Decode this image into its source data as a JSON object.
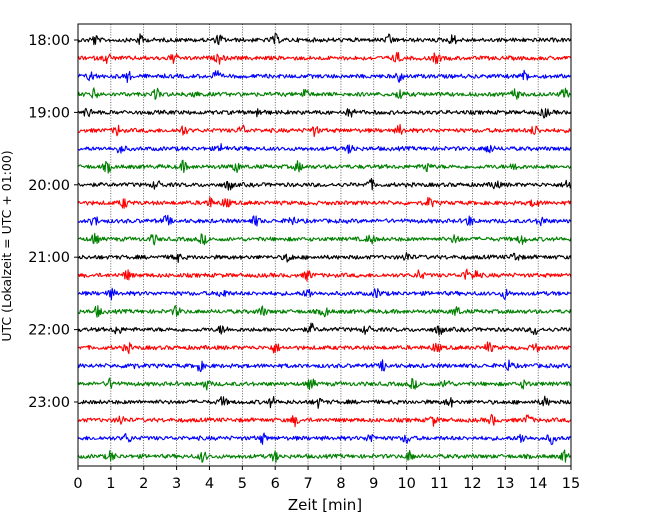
{
  "chart_data": {
    "type": "line",
    "title": "",
    "xlabel": "Zeit  [min]",
    "ylabel": "UTC (Lokalzeit = UTC + 01:00)",
    "xlim": [
      0,
      15
    ],
    "x_ticks": [
      "0",
      "1",
      "2",
      "3",
      "4",
      "5",
      "6",
      "7",
      "8",
      "9",
      "10",
      "11",
      "12",
      "13",
      "14",
      "15"
    ],
    "y_ticks": [
      "18:00",
      "19:00",
      "20:00",
      "21:00",
      "22:00",
      "23:00"
    ],
    "grid": "vertical dotted at each minute",
    "trace_interval_minutes": 15,
    "trace_colors": [
      "#000000",
      "#ff0000",
      "#0000ff",
      "#008000"
    ],
    "traces": [
      {
        "start": "18:00",
        "color": "#000000",
        "events_min": [
          0.5,
          1.9,
          4.3,
          6.0,
          9.5,
          11.4
        ]
      },
      {
        "start": "18:15",
        "color": "#ff0000",
        "events_min": [
          0.9,
          2.9,
          4.3,
          9.7,
          10.9
        ]
      },
      {
        "start": "18:30",
        "color": "#0000ff",
        "events_min": [
          0.4,
          1.5,
          4.2,
          9.8,
          13.6
        ]
      },
      {
        "start": "18:45",
        "color": "#008000",
        "events_min": [
          0.5,
          2.4,
          3.5,
          6.9,
          9.8,
          13.3,
          14.8
        ]
      },
      {
        "start": "19:00",
        "color": "#000000",
        "events_min": [
          0.3,
          5.5,
          8.3,
          14.2
        ]
      },
      {
        "start": "19:15",
        "color": "#ff0000",
        "events_min": [
          1.2,
          3.2,
          5.0,
          7.2,
          9.8,
          13.9
        ]
      },
      {
        "start": "19:30",
        "color": "#0000ff",
        "events_min": [
          1.3,
          4.4,
          8.3,
          12.5
        ]
      },
      {
        "start": "19:45",
        "color": "#008000",
        "events_min": [
          0.9,
          3.2,
          4.8,
          6.7,
          10.6,
          13.3
        ]
      },
      {
        "start": "20:00",
        "color": "#000000",
        "events_min": [
          2.4,
          4.6,
          8.9,
          12.7,
          14.9
        ]
      },
      {
        "start": "20:15",
        "color": "#ff0000",
        "events_min": [
          1.4,
          4.0,
          4.5,
          10.7,
          13.9
        ]
      },
      {
        "start": "20:30",
        "color": "#0000ff",
        "events_min": [
          0.5,
          2.7,
          5.4,
          6.5,
          11.9,
          14.1
        ]
      },
      {
        "start": "20:45",
        "color": "#008000",
        "events_min": [
          0.5,
          2.3,
          3.8,
          8.9,
          11.5,
          13.5
        ]
      },
      {
        "start": "21:00",
        "color": "#000000",
        "events_min": [
          3.0,
          6.4,
          10.0,
          13.3
        ]
      },
      {
        "start": "21:15",
        "color": "#ff0000",
        "events_min": [
          1.5,
          7.0,
          10.4,
          11.8,
          12.1
        ]
      },
      {
        "start": "21:30",
        "color": "#0000ff",
        "events_min": [
          1.0,
          4.4,
          7.0,
          9.1,
          13.0
        ]
      },
      {
        "start": "21:45",
        "color": "#008000",
        "events_min": [
          0.6,
          3.0,
          5.6,
          7.5,
          11.5
        ]
      },
      {
        "start": "22:00",
        "color": "#000000",
        "events_min": [
          1.2,
          4.4,
          7.1,
          8.8,
          11.0,
          13.9
        ]
      },
      {
        "start": "22:15",
        "color": "#ff0000",
        "events_min": [
          1.5,
          6.0,
          10.9,
          12.5,
          13.9
        ]
      },
      {
        "start": "22:30",
        "color": "#0000ff",
        "events_min": [
          1.6,
          3.7,
          9.3,
          13.1
        ]
      },
      {
        "start": "22:45",
        "color": "#008000",
        "events_min": [
          1.0,
          3.9,
          7.1,
          10.2,
          11.2,
          13.6
        ]
      },
      {
        "start": "23:00",
        "color": "#000000",
        "events_min": [
          4.4,
          5.9,
          7.3,
          11.3,
          14.2
        ]
      },
      {
        "start": "23:15",
        "color": "#ff0000",
        "events_min": [
          1.3,
          6.6,
          10.8,
          12.6,
          13.7
        ]
      },
      {
        "start": "23:30",
        "color": "#0000ff",
        "events_min": [
          1.5,
          5.6,
          8.9,
          10.0,
          13.5,
          14.4
        ]
      },
      {
        "start": "23:45",
        "color": "#008000",
        "events_min": [
          1.0,
          3.8,
          6.0,
          10.1,
          14.8
        ]
      }
    ]
  }
}
